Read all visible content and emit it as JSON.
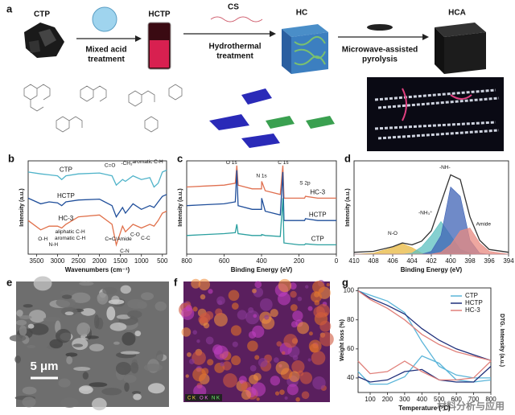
{
  "scheme": {
    "panel": "a",
    "materials": [
      "CTP",
      "HCTP",
      "CS",
      "HC",
      "HCA"
    ],
    "processes": [
      [
        "Mixed acid",
        "treatment"
      ],
      [
        "Hydrothermal",
        "treatment"
      ],
      [
        "Microwave-assisted",
        "pyrolysis"
      ]
    ]
  },
  "images": [
    {
      "panel": "e",
      "scale_bar": "5 μm"
    },
    {
      "panel": "f",
      "legend": [
        "C K",
        "O K",
        "N K"
      ]
    }
  ],
  "watermark": "材料分析与应用",
  "chart_data": [
    {
      "type": "line",
      "panel": "b",
      "xlabel": "Wavenumbers (cm⁻¹)",
      "ylabel": "Intensity (a.u.)",
      "x": [
        3700,
        3400,
        3200,
        3000,
        2900,
        2800,
        2500,
        2000,
        1700,
        1600,
        1450,
        1380,
        1200,
        1000,
        800,
        700,
        600,
        500,
        400
      ],
      "xlim": [
        3700,
        400
      ],
      "xticks": [
        3500,
        3000,
        2500,
        2000,
        1500,
        1000,
        500
      ],
      "ylim": [
        0,
        1
      ],
      "series": [
        {
          "name": "CTP",
          "color": "#4fb3c9",
          "values": [
            0.88,
            0.86,
            0.85,
            0.84,
            0.8,
            0.84,
            0.86,
            0.87,
            0.84,
            0.74,
            0.8,
            0.78,
            0.84,
            0.8,
            0.82,
            0.72,
            0.76,
            0.88,
            0.9
          ]
        },
        {
          "name": "HCTP",
          "color": "#1f4e9a",
          "values": [
            0.6,
            0.54,
            0.56,
            0.55,
            0.52,
            0.56,
            0.58,
            0.59,
            0.52,
            0.4,
            0.5,
            0.44,
            0.54,
            0.48,
            0.52,
            0.5,
            0.56,
            0.62,
            0.64
          ]
        },
        {
          "name": "HC-3",
          "color": "#e0704a",
          "values": [
            0.36,
            0.26,
            0.3,
            0.3,
            0.28,
            0.32,
            0.4,
            0.42,
            0.32,
            0.1,
            0.3,
            0.24,
            0.32,
            0.28,
            0.32,
            0.3,
            0.36,
            0.44,
            0.46
          ]
        }
      ],
      "annotations": [
        {
          "text": "O-H",
          "x": 3350,
          "y": 0.16
        },
        {
          "text": "N-H",
          "x": 3100,
          "y": 0.1
        },
        {
          "text": "aliphatic C-H",
          "x": 2700,
          "y": 0.24
        },
        {
          "text": "aromatic C-H",
          "x": 2700,
          "y": 0.17
        },
        {
          "text": "C=O",
          "x": 1750,
          "y": 0.95
        },
        {
          "text": "-CH₃",
          "x": 1350,
          "y": 0.97
        },
        {
          "text": "aromatic C-H",
          "x": 850,
          "y": 0.99
        },
        {
          "text": "C=C/Amide",
          "x": 1550,
          "y": 0.16
        },
        {
          "text": "C-O",
          "x": 1150,
          "y": 0.21
        },
        {
          "text": "C-C",
          "x": 900,
          "y": 0.17
        },
        {
          "text": "C-N",
          "x": 1400,
          "y": 0.03
        }
      ]
    },
    {
      "type": "line",
      "panel": "c",
      "xlabel": "Binding Energy (eV)",
      "ylabel": "Intensity (a.u.)",
      "x": [
        800,
        700,
        600,
        540,
        532,
        525,
        450,
        400,
        399,
        380,
        300,
        286,
        280,
        200,
        170,
        165,
        100,
        0
      ],
      "xlim": [
        800,
        0
      ],
      "xticks": [
        800,
        600,
        400,
        200,
        0
      ],
      "ylim": [
        0,
        1
      ],
      "series": [
        {
          "name": "HC-3",
          "color": "#e07050",
          "values": [
            0.72,
            0.73,
            0.74,
            0.76,
            0.95,
            0.74,
            0.7,
            0.7,
            0.78,
            0.68,
            0.64,
            0.95,
            0.6,
            0.6,
            0.6,
            0.62,
            0.6,
            0.6
          ]
        },
        {
          "name": "HCTP",
          "color": "#1f4e9a",
          "values": [
            0.52,
            0.53,
            0.54,
            0.56,
            0.9,
            0.52,
            0.48,
            0.48,
            0.6,
            0.46,
            0.42,
            0.88,
            0.36,
            0.36,
            0.36,
            0.38,
            0.36,
            0.36
          ]
        },
        {
          "name": "CTP",
          "color": "#2a9f9f",
          "values": [
            0.2,
            0.21,
            0.22,
            0.23,
            0.32,
            0.22,
            0.2,
            0.2,
            0.21,
            0.2,
            0.19,
            0.6,
            0.12,
            0.1,
            0.1,
            0.11,
            0.1,
            0.1
          ]
        }
      ],
      "annotations": [
        {
          "text": "O 1s",
          "x": 560,
          "y": 0.98
        },
        {
          "text": "N 1s",
          "x": 400,
          "y": 0.84
        },
        {
          "text": "C 1s",
          "x": 284,
          "y": 0.98
        },
        {
          "text": "S 2p",
          "x": 168,
          "y": 0.76
        }
      ]
    },
    {
      "type": "line",
      "panel": "d",
      "xlabel": "Binding Energy (eV)",
      "ylabel": "Intensity (a.u.)",
      "x": [
        410,
        408,
        406,
        405,
        404,
        403,
        402,
        401,
        400,
        399,
        398,
        397,
        396,
        394
      ],
      "xlim": [
        410,
        394
      ],
      "xticks": [
        410,
        408,
        406,
        404,
        402,
        400,
        398,
        396,
        394
      ],
      "ylim": [
        0,
        1
      ],
      "series": [
        {
          "color": "#e8b840",
          "fill": true,
          "values": [
            0,
            0.01,
            0.07,
            0.11,
            0.07,
            0.01,
            0,
            0,
            0,
            0,
            0,
            0,
            0,
            0
          ]
        },
        {
          "color": "#5cc0c0",
          "fill": true,
          "values": [
            0,
            0,
            0,
            0,
            0.01,
            0.08,
            0.2,
            0.35,
            0.2,
            0.05,
            0.01,
            0,
            0,
            0
          ]
        },
        {
          "color": "#3f63b5",
          "fill": true,
          "values": [
            0,
            0,
            0,
            0,
            0,
            0,
            0.03,
            0.2,
            0.72,
            0.62,
            0.15,
            0.01,
            0,
            0
          ]
        },
        {
          "color": "#e88a80",
          "fill": true,
          "values": [
            0,
            0,
            0,
            0,
            0,
            0,
            0,
            0.02,
            0.1,
            0.25,
            0.28,
            0.12,
            0.03,
            0
          ]
        },
        {
          "color": "#333333",
          "values": [
            0.02,
            0.03,
            0.08,
            0.12,
            0.1,
            0.14,
            0.25,
            0.55,
            0.85,
            0.8,
            0.4,
            0.15,
            0.05,
            0.02
          ]
        }
      ],
      "annotations": [
        {
          "text": "N-O",
          "x": 406,
          "y": 0.22
        },
        {
          "text": "-NH₃⁺",
          "x": 402.6,
          "y": 0.44
        },
        {
          "text": "-NH-",
          "x": 400.6,
          "y": 0.93
        },
        {
          "text": "Amide",
          "x": 396.6,
          "y": 0.32
        }
      ]
    },
    {
      "type": "line",
      "panel": "g",
      "xlabel": "Temperature (°C)",
      "ylabel": "Weight loss (%)",
      "y2label": "DTG. Intensity (a.u.)",
      "x": [
        30,
        100,
        200,
        300,
        400,
        500,
        600,
        700,
        800
      ],
      "xlim": [
        30,
        800
      ],
      "xticks": [
        100,
        200,
        300,
        400,
        500,
        600,
        700,
        800
      ],
      "ylim": [
        30,
        102
      ],
      "yticks": [
        40,
        60,
        80,
        100
      ],
      "y2lim": [
        0,
        1
      ],
      "legend": "upper right",
      "series": [
        {
          "name": "CTP",
          "color": "#5bb5d9",
          "values": [
            100,
            97,
            93,
            85,
            65,
            48,
            42,
            40,
            40
          ]
        },
        {
          "name": "HCTP",
          "color": "#1f2f7a",
          "values": [
            100,
            95,
            90,
            84,
            74,
            66,
            60,
            56,
            52
          ]
        },
        {
          "name": "HC-3",
          "color": "#e0807a",
          "values": [
            100,
            94,
            88,
            80,
            70,
            63,
            58,
            55,
            52
          ]
        },
        {
          "color": "#5bb5d9",
          "axis": "y2",
          "values": [
            0.2,
            0.08,
            0.08,
            0.15,
            0.35,
            0.28,
            0.12,
            0.1,
            0.12
          ]
        },
        {
          "color": "#1f2f7a",
          "axis": "y2",
          "values": [
            0.15,
            0.1,
            0.12,
            0.2,
            0.22,
            0.12,
            0.1,
            0.1,
            0.25
          ]
        },
        {
          "color": "#e0807a",
          "axis": "y2",
          "values": [
            0.3,
            0.18,
            0.2,
            0.3,
            0.2,
            0.12,
            0.12,
            0.14,
            0.3
          ]
        }
      ]
    }
  ]
}
